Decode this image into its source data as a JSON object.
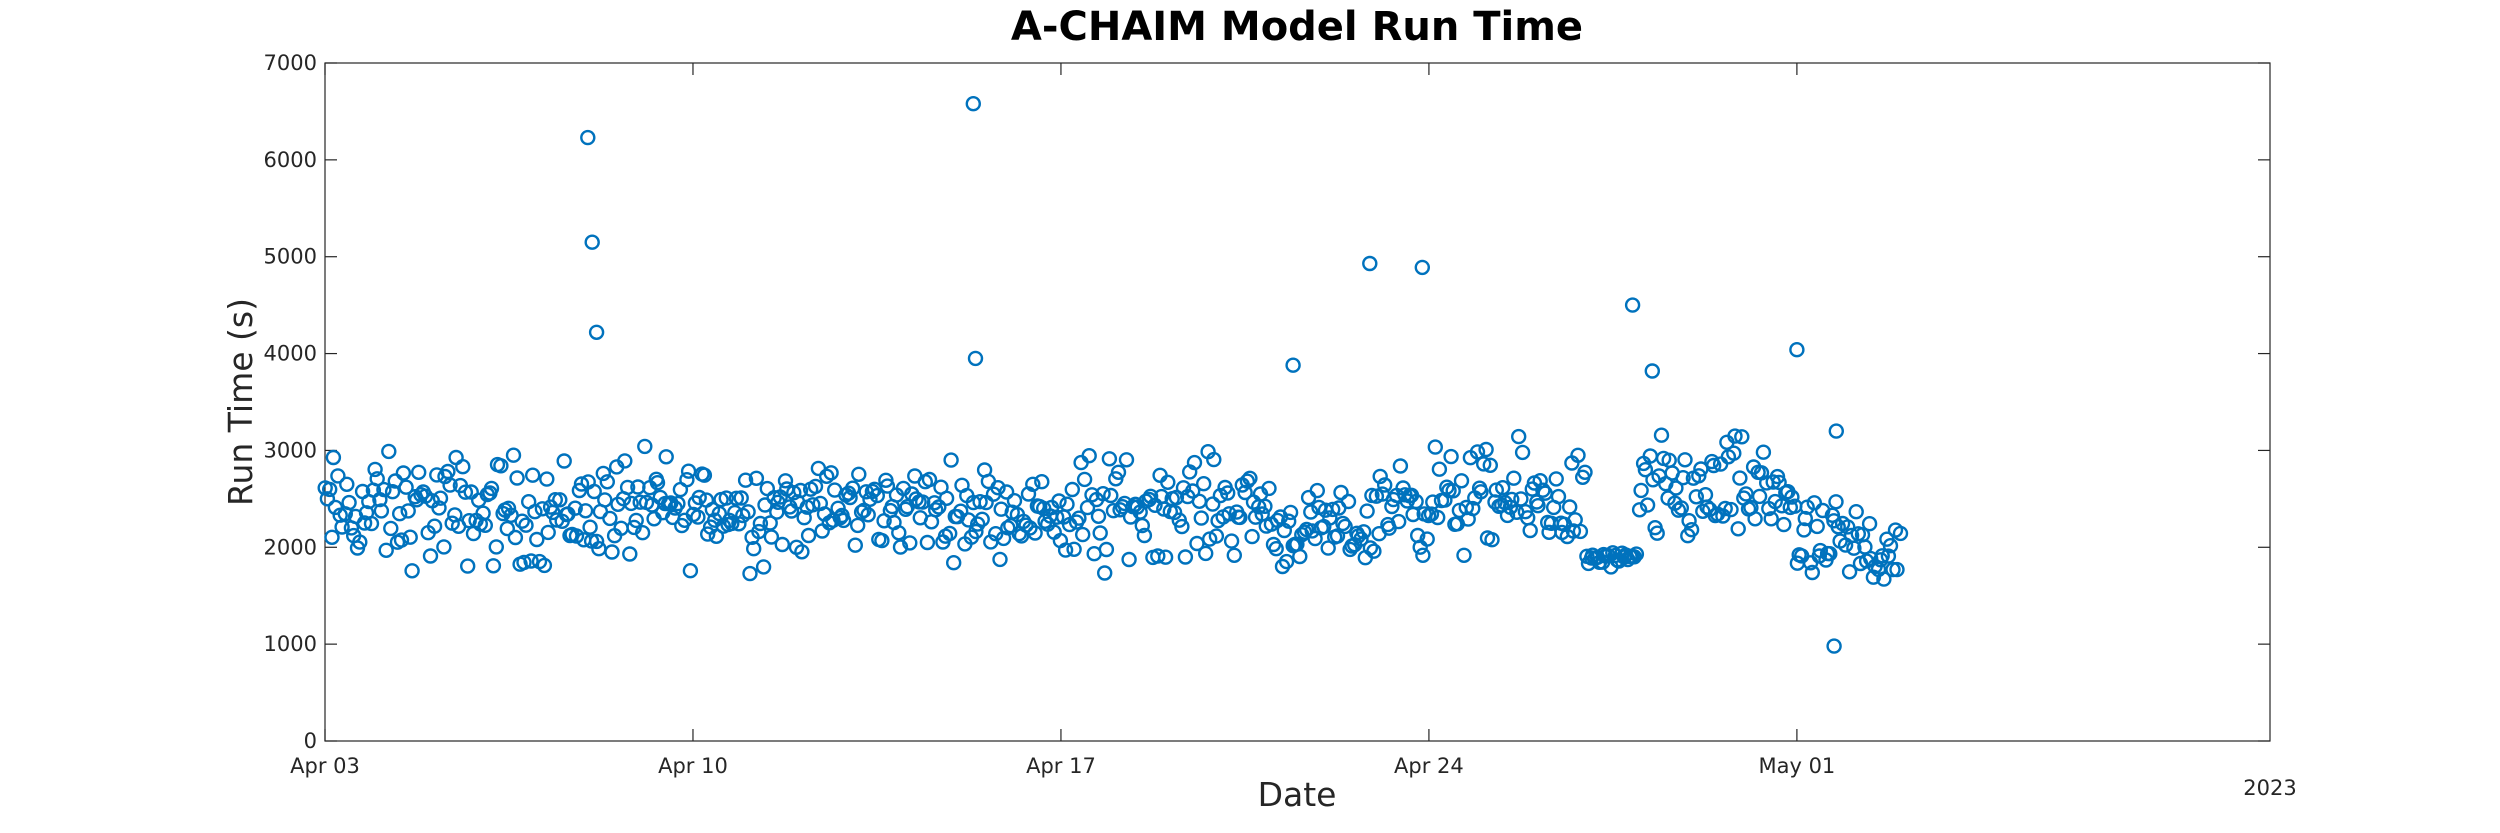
{
  "chart_data": {
    "type": "scatter",
    "title": "A-CHAIM Model Run Time",
    "xlabel": "Date",
    "ylabel": "Run Time (s)",
    "year_label": "2023",
    "xlim": [
      "2023-04-03",
      "2023-05-10"
    ],
    "ylim": [
      0,
      7000
    ],
    "x_ticks": [
      {
        "date": "2023-04-03",
        "label": "Apr 03"
      },
      {
        "date": "2023-04-10",
        "label": "Apr 10"
      },
      {
        "date": "2023-04-17",
        "label": "Apr 17"
      },
      {
        "date": "2023-04-24",
        "label": "Apr 24"
      },
      {
        "date": "2023-05-01",
        "label": "May 01"
      }
    ],
    "y_ticks": [
      0,
      1000,
      2000,
      3000,
      4000,
      5000,
      6000,
      7000
    ],
    "grid": false,
    "legend": "none",
    "marker": "circle",
    "color": "#0072BD",
    "outliers": [
      {
        "x": "2023-04-08 00:00",
        "y": 6230
      },
      {
        "x": "2023-04-08 02:00",
        "y": 5150
      },
      {
        "x": "2023-04-08 04:00",
        "y": 4220
      },
      {
        "x": "2023-04-15 08:00",
        "y": 6580
      },
      {
        "x": "2023-04-15 09:00",
        "y": 3950
      },
      {
        "x": "2023-04-21 10:00",
        "y": 3880
      },
      {
        "x": "2023-04-22 21:00",
        "y": 4930
      },
      {
        "x": "2023-04-23 21:00",
        "y": 4890
      },
      {
        "x": "2023-04-27 21:00",
        "y": 4500
      },
      {
        "x": "2023-04-28 06:00",
        "y": 3820
      },
      {
        "x": "2023-05-01 00:00",
        "y": 4040
      },
      {
        "x": "2023-05-01 18:00",
        "y": 3200
      },
      {
        "x": "2023-05-01 17:00",
        "y": 980
      }
    ],
    "segments": [
      {
        "from": "2023-04-03",
        "to": "2023-04-08",
        "low": 1550,
        "high": 3200
      },
      {
        "from": "2023-04-08",
        "to": "2023-04-12",
        "low": 1600,
        "high": 3200
      },
      {
        "from": "2023-04-12",
        "to": "2023-04-16",
        "low": 1750,
        "high": 3050
      },
      {
        "from": "2023-04-16",
        "to": "2023-04-17",
        "low": 1900,
        "high": 2850
      },
      {
        "from": "2023-04-17",
        "to": "2023-04-18",
        "low": 1350,
        "high": 3300
      },
      {
        "from": "2023-04-18",
        "to": "2023-04-21",
        "low": 1700,
        "high": 3150
      },
      {
        "from": "2023-04-21",
        "to": "2023-04-23",
        "low": 1650,
        "high": 2700
      },
      {
        "from": "2023-04-23",
        "to": "2023-04-27",
        "low": 1700,
        "high": 3250
      },
      {
        "from": "2023-04-27",
        "to": "2023-04-28",
        "low": 1750,
        "high": 2000
      },
      {
        "from": "2023-04-28",
        "to": "2023-05-01",
        "low": 1750,
        "high": 3350
      },
      {
        "from": "2023-05-01",
        "to": "2023-05-03",
        "low": 1300,
        "high": 2700
      }
    ]
  }
}
